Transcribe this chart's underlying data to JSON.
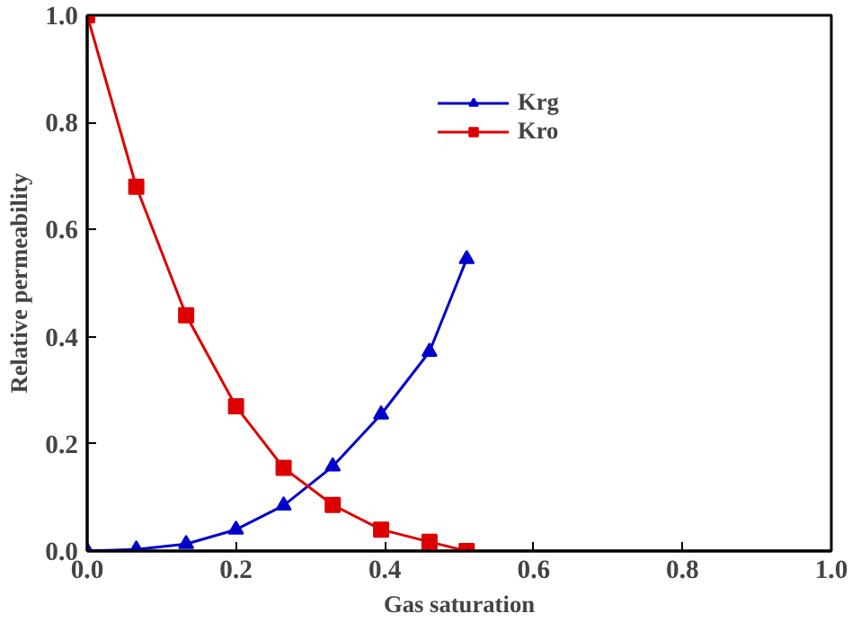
{
  "chart_data": {
    "type": "line",
    "xlabel": "Gas saturation",
    "ylabel": "Relative permeability",
    "x": [
      0,
      0.066,
      0.133,
      0.2,
      0.264,
      0.33,
      0.395,
      0.46,
      0.51
    ],
    "series": [
      {
        "name": "Krg",
        "color": "#0000cc",
        "marker": "triangle",
        "values": [
          0,
          0.003,
          0.013,
          0.04,
          0.085,
          0.158,
          0.255,
          0.372,
          0.545
        ]
      },
      {
        "name": "Kro",
        "color": "#dd0000",
        "marker": "square",
        "values": [
          1.0,
          0.68,
          0.44,
          0.27,
          0.155,
          0.086,
          0.04,
          0.017,
          0
        ]
      }
    ],
    "xlim": [
      0,
      1.0
    ],
    "ylim": [
      0,
      1.0
    ],
    "xticks": [
      {
        "value": 0,
        "label": "0.0"
      },
      0.2,
      0.4,
      0.6,
      0.8,
      {
        "value": 1,
        "label": "1.0"
      }
    ],
    "yticks": [
      {
        "value": 0,
        "label": "0.0"
      },
      0.2,
      0.4,
      0.6,
      0.8,
      {
        "value": 1,
        "label": "1.0"
      }
    ],
    "grid": false,
    "legend": "top",
    "line_style": "solid"
  }
}
